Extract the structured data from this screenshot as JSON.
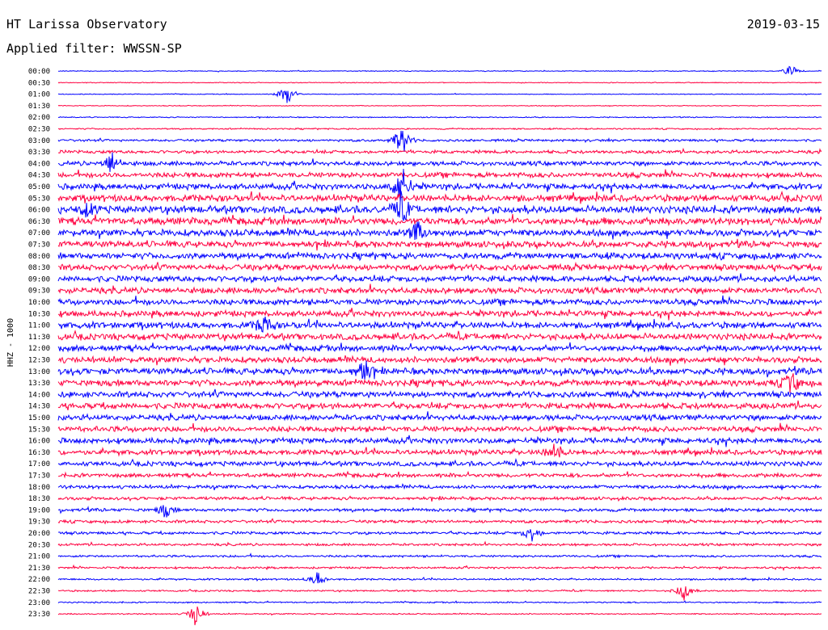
{
  "header": {
    "title": "HT Larissa Observatory",
    "date": "2019-03-15",
    "filter": "Applied filter: WWSSN-SP"
  },
  "chart_data": {
    "type": "line",
    "title": "HT Larissa Observatory",
    "ylabel": "HHZ - 1000",
    "time_labels": [
      "00:00",
      "00:30",
      "01:00",
      "01:30",
      "02:00",
      "02:30",
      "03:00",
      "03:30",
      "04:00",
      "04:30",
      "05:00",
      "05:30",
      "06:00",
      "06:30",
      "07:00",
      "07:30",
      "08:00",
      "08:30",
      "09:00",
      "09:30",
      "10:00",
      "10:30",
      "11:00",
      "11:30",
      "12:00",
      "12:30",
      "13:00",
      "13:30",
      "14:00",
      "14:30",
      "15:00",
      "15:30",
      "16:00",
      "16:30",
      "17:00",
      "17:30",
      "18:00",
      "18:30",
      "19:00",
      "19:30",
      "20:00",
      "20:30",
      "21:00",
      "21:30",
      "22:00",
      "22:30",
      "23:00",
      "23:30"
    ],
    "trace_colors": [
      "#0000ff",
      "#ff0040"
    ],
    "noise_level": [
      0.4,
      0.4,
      0.4,
      0.4,
      0.5,
      0.7,
      1.2,
      1.6,
      2.2,
      2.6,
      3.0,
      3.4,
      3.8,
      3.6,
      3.4,
      3.2,
      3.2,
      3.0,
      3.0,
      3.0,
      3.0,
      3.0,
      3.2,
      3.2,
      3.0,
      3.0,
      3.2,
      3.2,
      3.0,
      3.0,
      2.8,
      2.8,
      2.8,
      2.6,
      2.4,
      2.0,
      1.8,
      1.6,
      1.6,
      1.5,
      1.4,
      1.2,
      1.1,
      1.0,
      0.9,
      0.8,
      0.7,
      0.6
    ],
    "events": [
      {
        "trace": 0,
        "position": 0.96,
        "amplitude": 8
      },
      {
        "trace": 2,
        "position": 0.3,
        "amplitude": 16
      },
      {
        "trace": 6,
        "position": 0.45,
        "amplitude": 22
      },
      {
        "trace": 8,
        "position": 0.07,
        "amplitude": 16
      },
      {
        "trace": 10,
        "position": 0.45,
        "amplitude": 30
      },
      {
        "trace": 12,
        "position": 0.04,
        "amplitude": 10
      },
      {
        "trace": 12,
        "position": 0.45,
        "amplitude": 20
      },
      {
        "trace": 14,
        "position": 0.47,
        "amplitude": 14
      },
      {
        "trace": 22,
        "position": 0.27,
        "amplitude": 14
      },
      {
        "trace": 26,
        "position": 0.4,
        "amplitude": 18
      },
      {
        "trace": 27,
        "position": 0.96,
        "amplitude": 16
      },
      {
        "trace": 33,
        "position": 0.65,
        "amplitude": 14
      },
      {
        "trace": 38,
        "position": 0.14,
        "amplitude": 10
      },
      {
        "trace": 40,
        "position": 0.62,
        "amplitude": 12
      },
      {
        "trace": 44,
        "position": 0.34,
        "amplitude": 10
      },
      {
        "trace": 45,
        "position": 0.82,
        "amplitude": 14
      },
      {
        "trace": 47,
        "position": 0.18,
        "amplitude": 16
      }
    ]
  }
}
